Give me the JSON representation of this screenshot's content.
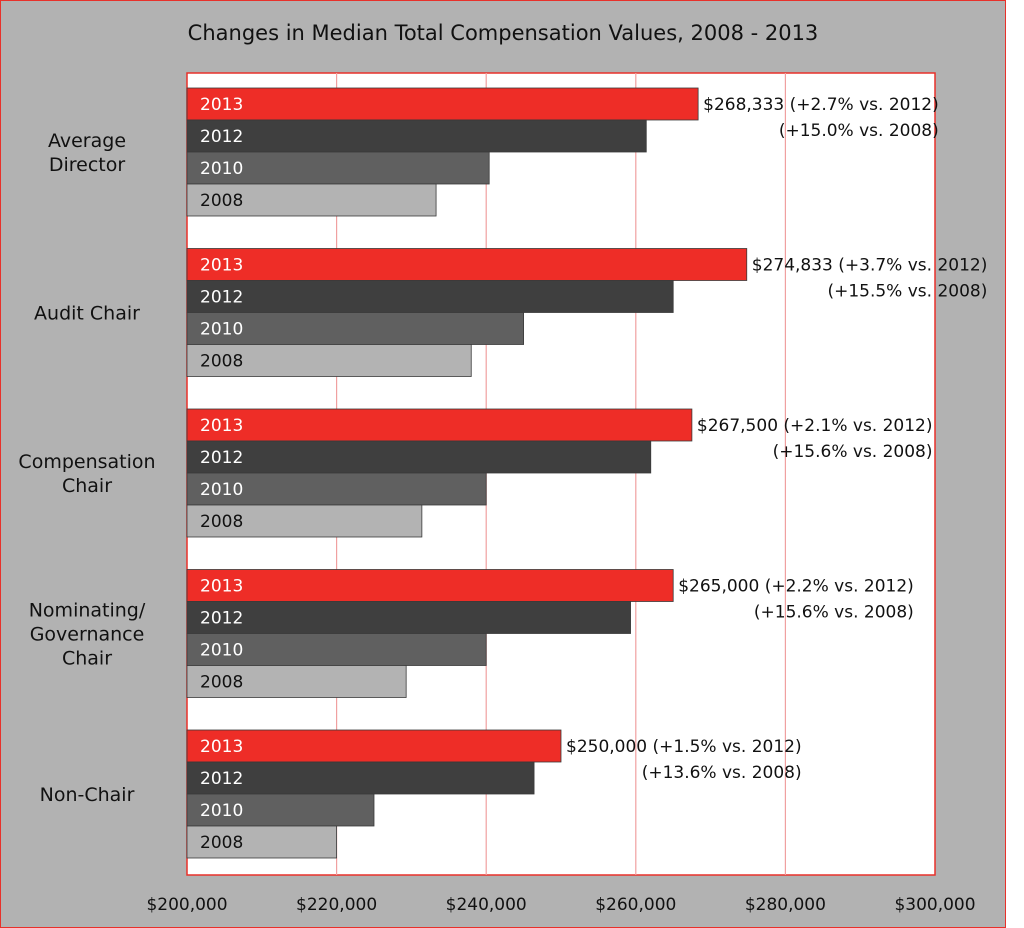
{
  "chart_data": {
    "type": "bar",
    "orientation": "horizontal",
    "title": "Changes in Median Total Compensation Values, 2008 - 2013",
    "xlim": [
      200000,
      300000
    ],
    "x_ticks": [
      "$200,000",
      "$220,000",
      "$240,000",
      "$260,000",
      "$280,000",
      "$300,000"
    ],
    "x_tick_values": [
      200000,
      220000,
      240000,
      260000,
      280000,
      300000
    ],
    "grid": "vertical",
    "legend": "none",
    "colors": {
      "2013": "#ee2d27",
      "2012": "#3f3f3f",
      "2010": "#606060",
      "2008": "#b3b3b3",
      "plot_bg": "#ffffff",
      "frame_bg": "#b2b2b2",
      "accent": "#e8312a",
      "grid": "#f0a0a0"
    },
    "series_labels": [
      "2013",
      "2012",
      "2010",
      "2008"
    ],
    "groups": [
      {
        "label": [
          "Average",
          "Director"
        ],
        "values": {
          "2013": 268333,
          "2012": 261400,
          "2010": 240400,
          "2008": 233300
        },
        "annotation": [
          "$268,333 (+2.7% vs.  2012)",
          "(+15.0% vs.  2008)"
        ]
      },
      {
        "label": [
          "Audit Chair"
        ],
        "values": {
          "2013": 274833,
          "2012": 265000,
          "2010": 245000,
          "2008": 238000
        },
        "annotation": [
          "$274,833 (+3.7% vs.  2012)",
          "(+15.5% vs.  2008)"
        ]
      },
      {
        "label": [
          "Compensation",
          "Chair"
        ],
        "values": {
          "2013": 267500,
          "2012": 262000,
          "2010": 240000,
          "2008": 231400
        },
        "annotation": [
          "$267,500 (+2.1% vs.  2012)",
          "(+15.6% vs.  2008)"
        ]
      },
      {
        "label": [
          "Nominating/",
          "Governance",
          "Chair"
        ],
        "values": {
          "2013": 265000,
          "2012": 259300,
          "2010": 240000,
          "2008": 229300
        },
        "annotation": [
          "$265,000 (+2.2% vs.  2012)",
          "(+15.6% vs.  2008)"
        ]
      },
      {
        "label": [
          "Non-Chair"
        ],
        "values": {
          "2013": 250000,
          "2012": 246400,
          "2010": 225000,
          "2008": 220000
        },
        "annotation": [
          "$250,000 (+1.5% vs.  2012)",
          "(+13.6% vs.  2008)"
        ]
      }
    ]
  }
}
